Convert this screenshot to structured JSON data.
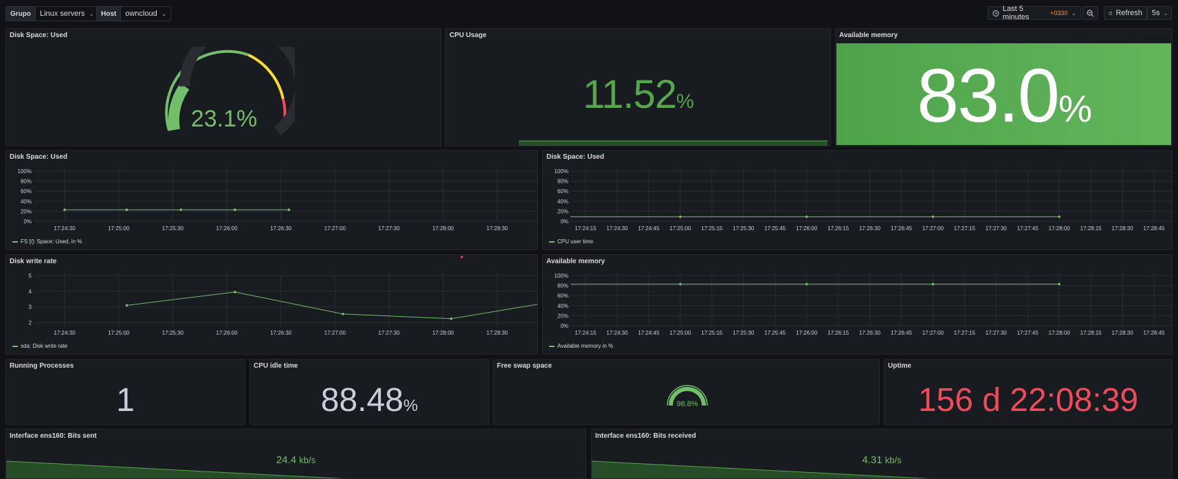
{
  "vars": {
    "group": {
      "label": "Grupo",
      "value": "Linux servers"
    },
    "host": {
      "label": "Host",
      "value": "owncloud"
    }
  },
  "toolbar": {
    "time_range": "Last 5 minutes",
    "timezone": "+0330",
    "refresh_label": "Refresh",
    "refresh_interval": "5s"
  },
  "panels": {
    "disk_gauge": {
      "title": "Disk Space: Used",
      "value": "23.1%",
      "value_num": 23.1
    },
    "cpu_usage": {
      "title": "CPU Usage",
      "value": "11.52",
      "unit": "%"
    },
    "avail_mem": {
      "title": "Available memory",
      "value": "83.0",
      "unit": "%"
    },
    "disk_ts": {
      "title": "Disk Space: Used",
      "legend": "FS [/]: Space: Used, in %"
    },
    "cpu_user": {
      "title": "Disk Space: Used",
      "legend": "CPU user time"
    },
    "disk_write": {
      "title": "Disk write rate",
      "legend": "sda: Disk write rate"
    },
    "mem_ts": {
      "title": "Available memory",
      "legend": "Available memory in %"
    },
    "procs": {
      "title": "Running Processes",
      "value": "1"
    },
    "cpu_idle": {
      "title": "CPU idle time",
      "value": "88.48",
      "unit": "%"
    },
    "swap": {
      "title": "Free swap space",
      "value": "98.8%",
      "value_num": 98.8
    },
    "uptime": {
      "title": "Uptime",
      "value": "156 d 22:08:39"
    },
    "bits_sent": {
      "title": "Interface ens160: Bits sent",
      "value": "24.4",
      "unit": "kb/s"
    },
    "bits_recv": {
      "title": "Interface ens160: Bits received",
      "value": "4.31",
      "unit": "kb/s"
    }
  },
  "colors": {
    "green": "#73bf69",
    "dark_green": "#56a64b",
    "red": "#f2495c",
    "yellow": "#fade2a",
    "orange": "#ff9830"
  },
  "chart_data": [
    {
      "id": "disk_ts",
      "type": "line",
      "ylim": [
        0,
        100
      ],
      "yticks": [
        "100%",
        "80%",
        "60%",
        "40%",
        "20%",
        "0%"
      ],
      "xticks": [
        "17:24:30",
        "17:25:00",
        "17:25:30",
        "17:26:00",
        "17:26:30",
        "17:27:00",
        "17:27:30",
        "17:28:00",
        "17:28:30",
        "17:29:0"
      ],
      "series": [
        {
          "name": "FS [/]: Space: Used, in %",
          "points": [
            [
              0.0,
              23
            ],
            [
              1.15,
              23
            ],
            [
              2.15,
              23
            ],
            [
              3.15,
              23
            ],
            [
              4.15,
              23
            ]
          ]
        }
      ]
    },
    {
      "id": "cpu_user",
      "type": "line",
      "ylim": [
        0,
        100
      ],
      "yticks": [
        "100%",
        "80%",
        "60%",
        "40%",
        "20%",
        "0%"
      ],
      "xticks": [
        "17:24:15",
        "17:24:30",
        "17:24:45",
        "17:25:00",
        "17:25:15",
        "17:25:30",
        "17:25:45",
        "17:26:00",
        "17:26:15",
        "17:26:30",
        "17:26:45",
        "17:27:00",
        "17:27:15",
        "17:27:30",
        "17:27:45",
        "17:28:00",
        "17:28:15",
        "17:28:30",
        "17:28:45",
        "17:29:0"
      ],
      "series": [
        {
          "name": "CPU user time",
          "points": [
            [
              -0.6,
              9
            ],
            [
              3,
              9
            ],
            [
              7,
              9
            ],
            [
              11,
              9
            ],
            [
              15,
              9
            ]
          ]
        }
      ]
    },
    {
      "id": "disk_write",
      "type": "line",
      "ylim": [
        1.8,
        5
      ],
      "yticks": [
        "5",
        "4",
        "3",
        "2"
      ],
      "ytick_values": [
        5,
        4,
        3,
        2
      ],
      "xticks": [
        "17:24:30",
        "17:25:00",
        "17:25:30",
        "17:26:00",
        "17:26:30",
        "17:27:00",
        "17:27:30",
        "17:28:00",
        "17:28:30",
        "17:29:0"
      ],
      "series": [
        {
          "name": "sda: Disk write rate",
          "points": [
            [
              1.15,
              3.1
            ],
            [
              3.15,
              3.95
            ],
            [
              5.15,
              2.55
            ],
            [
              7.15,
              2.25
            ],
            [
              9.15,
              3.4
            ]
          ]
        }
      ]
    },
    {
      "id": "mem_ts",
      "type": "line",
      "ylim": [
        0,
        100
      ],
      "yticks": [
        "100%",
        "80%",
        "60%",
        "40%",
        "20%",
        "0%"
      ],
      "xticks": [
        "17:24:15",
        "17:24:30",
        "17:24:45",
        "17:25:00",
        "17:25:15",
        "17:25:30",
        "17:25:45",
        "17:26:00",
        "17:26:15",
        "17:26:30",
        "17:26:45",
        "17:27:00",
        "17:27:15",
        "17:27:30",
        "17:27:45",
        "17:28:00",
        "17:28:15",
        "17:28:30",
        "17:28:45",
        "17:29:0"
      ],
      "series": [
        {
          "name": "Available memory in %",
          "points": [
            [
              -0.6,
              83
            ],
            [
              3,
              83
            ],
            [
              7,
              83
            ],
            [
              11,
              83
            ],
            [
              15,
              83
            ]
          ]
        }
      ]
    }
  ]
}
